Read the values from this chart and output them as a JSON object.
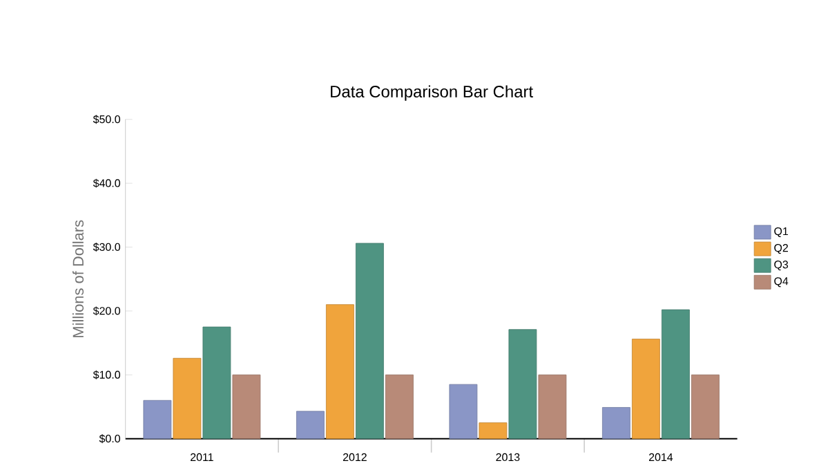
{
  "chart_data": {
    "type": "bar",
    "title": "Data Comparison Bar Chart",
    "ylabel": "Millions of Dollars",
    "categories": [
      "2011",
      "2012",
      "2013",
      "2014"
    ],
    "series": [
      {
        "name": "Q1",
        "color": "#8a96c6",
        "values": [
          6.0,
          4.3,
          8.5,
          4.9
        ]
      },
      {
        "name": "Q2",
        "color": "#f0a43c",
        "values": [
          12.6,
          21.0,
          2.5,
          15.6
        ]
      },
      {
        "name": "Q3",
        "color": "#4f9482",
        "values": [
          17.5,
          30.6,
          17.1,
          20.2
        ]
      },
      {
        "name": "Q4",
        "color": "#b88a78",
        "values": [
          10.0,
          10.0,
          10.0,
          10.0
        ]
      }
    ],
    "ylim": [
      0,
      50
    ],
    "yticks": [
      {
        "value": 0,
        "label": "$0.0"
      },
      {
        "value": 10,
        "label": "$10.0"
      },
      {
        "value": 20,
        "label": "$20.0"
      },
      {
        "value": 30,
        "label": "$30.0"
      },
      {
        "value": 40,
        "label": "$40.0"
      },
      {
        "value": 50,
        "label": "$50.0"
      }
    ],
    "legend": "right",
    "grid": false
  }
}
